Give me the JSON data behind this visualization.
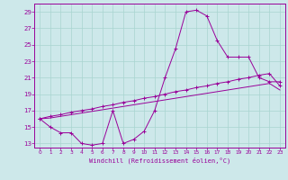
{
  "background_color": "#cde8ea",
  "grid_color": "#a8d4d0",
  "line_color": "#990099",
  "xlim_min": -0.5,
  "xlim_max": 23.5,
  "ylim_min": 12.5,
  "ylim_max": 30.0,
  "xtick_vals": [
    0,
    1,
    2,
    3,
    4,
    5,
    6,
    7,
    8,
    9,
    10,
    11,
    12,
    13,
    14,
    15,
    16,
    17,
    18,
    19,
    20,
    21,
    22,
    23
  ],
  "ytick_vals": [
    13,
    15,
    17,
    19,
    21,
    23,
    25,
    27,
    29
  ],
  "xlabel": "Windchill (Refroidissement éolien,°C)",
  "curve1_x": [
    0,
    1,
    2,
    3,
    4,
    5,
    6,
    7,
    8,
    9,
    10,
    11,
    12,
    13,
    14,
    15,
    16,
    17,
    18,
    19,
    20,
    21,
    22,
    23
  ],
  "curve1_y": [
    16.0,
    15.0,
    14.3,
    14.3,
    13.0,
    12.8,
    13.0,
    17.0,
    13.0,
    13.5,
    14.5,
    17.0,
    21.0,
    24.5,
    29.0,
    29.2,
    28.5,
    25.5,
    23.5,
    23.5,
    23.5,
    21.0,
    20.5,
    20.5
  ],
  "curve2_x": [
    0,
    1,
    2,
    3,
    4,
    5,
    6,
    7,
    8,
    9,
    10,
    11,
    12,
    13,
    14,
    15,
    16,
    17,
    18,
    19,
    20,
    21,
    22,
    23
  ],
  "curve2_y": [
    16.0,
    16.3,
    16.5,
    16.8,
    17.0,
    17.2,
    17.5,
    17.7,
    18.0,
    18.2,
    18.5,
    18.7,
    19.0,
    19.3,
    19.5,
    19.8,
    20.0,
    20.3,
    20.5,
    20.8,
    21.0,
    21.3,
    21.5,
    20.0
  ],
  "curve3_x": [
    0,
    1,
    2,
    3,
    4,
    5,
    6,
    7,
    8,
    9,
    10,
    11,
    12,
    13,
    14,
    15,
    16,
    17,
    18,
    19,
    20,
    21,
    22,
    23
  ],
  "curve3_y": [
    16.0,
    16.1,
    16.3,
    16.5,
    16.7,
    16.9,
    17.1,
    17.3,
    17.5,
    17.7,
    17.9,
    18.1,
    18.3,
    18.5,
    18.7,
    18.9,
    19.1,
    19.3,
    19.5,
    19.7,
    19.9,
    20.1,
    20.3,
    19.5
  ]
}
